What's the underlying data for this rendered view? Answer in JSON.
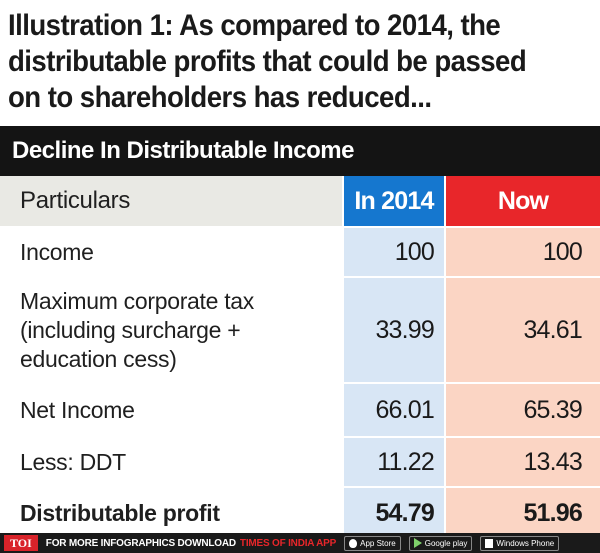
{
  "headline": {
    "line1": "Illustration 1: As compared to 2014, the",
    "line2": "distributable profits that could be passed",
    "line3": "on to shareholders has reduced..."
  },
  "table": {
    "title": "Decline In Distributable Income",
    "columns": [
      "Particulars",
      "In 2014",
      "Now"
    ],
    "rows": [
      {
        "label": [
          "Income"
        ],
        "in_2014": "100",
        "now": "100"
      },
      {
        "label": [
          "Maximum corporate tax",
          "(including surcharge +",
          "education cess)"
        ],
        "in_2014": "33.99",
        "now": "34.61"
      },
      {
        "label": [
          "Net Income"
        ],
        "in_2014": "66.01",
        "now": "65.39"
      },
      {
        "label": [
          "Less: DDT"
        ],
        "in_2014": "11.22",
        "now": "13.43"
      },
      {
        "label": [
          "Distributable profit"
        ],
        "in_2014": "54.79",
        "now": "51.96"
      }
    ]
  },
  "footer": {
    "badge": "TOI",
    "text": "FOR MORE INFOGRAPHICS DOWNLOAD",
    "brand": "TIMES OF INDIA APP",
    "stores": [
      {
        "name": "App Store",
        "icon": "apple-icon"
      },
      {
        "name": "Google play",
        "icon": "play-icon"
      },
      {
        "name": "Windows Phone",
        "icon": "windows-icon"
      }
    ]
  },
  "colors": {
    "title_bar": "#141414",
    "col_2014_header": "#1577cf",
    "col_now_header": "#e8262a",
    "col_2014_fill": "#d8e6f5",
    "col_now_fill": "#fbd5c4",
    "particulars_header": "#e9e9e4"
  }
}
